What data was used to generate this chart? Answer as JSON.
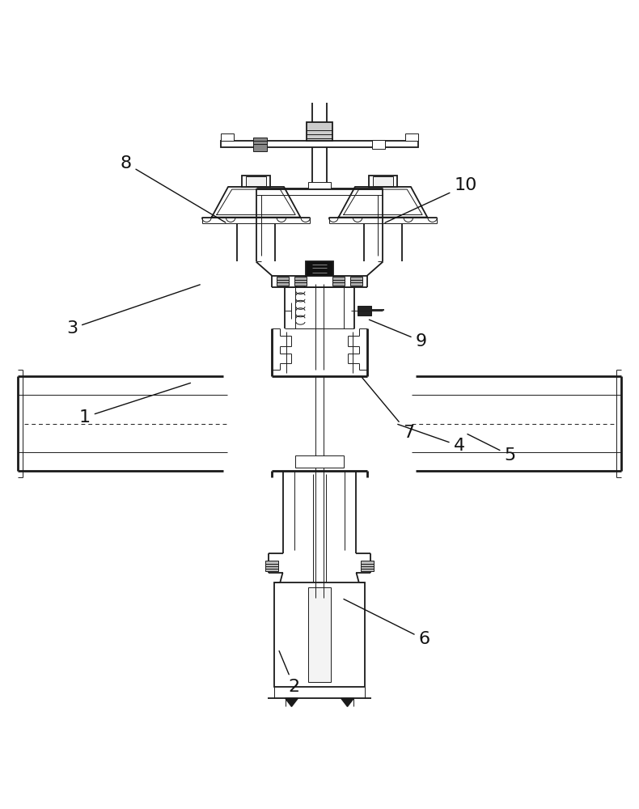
{
  "bg_color": "#ffffff",
  "lc": "#1a1a1a",
  "lw": 1.3,
  "lw_t": 0.7,
  "lw_T": 2.0,
  "figsize": [
    7.9,
    10.0
  ],
  "dpi": 100,
  "labels": {
    "1": [
      0.13,
      0.48,
      0.3,
      0.535
    ],
    "2": [
      0.46,
      0.055,
      0.435,
      0.115
    ],
    "3": [
      0.11,
      0.62,
      0.315,
      0.69
    ],
    "4": [
      0.72,
      0.435,
      0.62,
      0.47
    ],
    "5": [
      0.8,
      0.42,
      0.73,
      0.455
    ],
    "6": [
      0.665,
      0.13,
      0.535,
      0.195
    ],
    "7": [
      0.64,
      0.455,
      0.565,
      0.545
    ],
    "8": [
      0.195,
      0.88,
      0.355,
      0.785
    ],
    "9": [
      0.66,
      0.6,
      0.575,
      0.635
    ],
    "10": [
      0.73,
      0.845,
      0.6,
      0.785
    ]
  }
}
